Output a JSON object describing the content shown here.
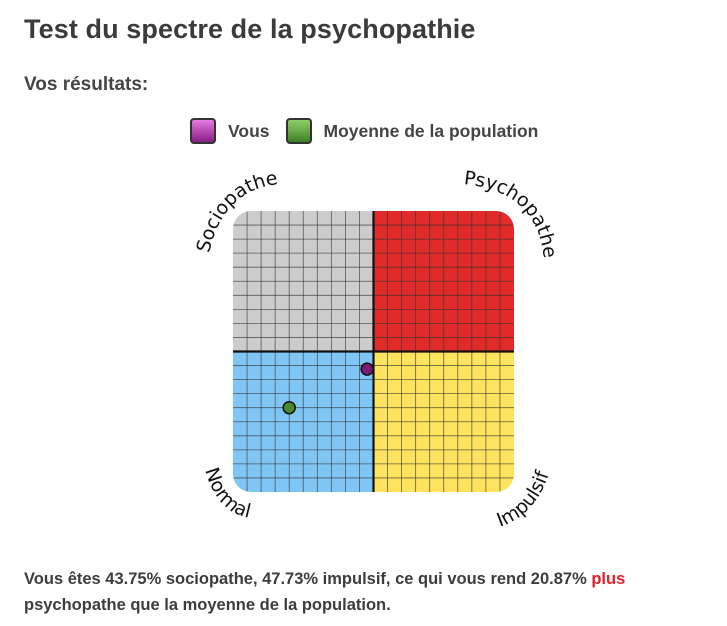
{
  "page": {
    "title": "Test du spectre de la psychopathie",
    "results_label": "Vos résultats:"
  },
  "legend": {
    "you_label": "Vous",
    "average_label": "Moyenne de la population"
  },
  "chart_data": {
    "type": "scatter",
    "quadrant_labels": {
      "top_left": "Sociopathe",
      "top_right": "Psychopathe",
      "bottom_left": "Normal",
      "bottom_right": "Impulsif"
    },
    "xlim": [
      0,
      100
    ],
    "ylim": [
      0,
      100
    ],
    "grid": true,
    "grid_divisions": 20,
    "quadrant_colors": {
      "top_left": "#cccccc",
      "top_right": "#e12a2a",
      "bottom_left": "#80c6f5",
      "bottom_right": "#fde35e"
    },
    "points": [
      {
        "name": "Vous",
        "x": 47.73,
        "y": 43.75,
        "color": "#7a1a73"
      },
      {
        "name": "Moyenne de la population",
        "x": 20,
        "y": 30,
        "color": "#4a8a2c"
      }
    ]
  },
  "summary": {
    "text_before": "Vous êtes 43.75% sociopathe, 47.73% impulsif, ce qui vous rend 20.87% ",
    "highlight": "plus",
    "text_after": " psychopathe que la moyenne de la population.",
    "highlight_color": "#e0202a"
  }
}
